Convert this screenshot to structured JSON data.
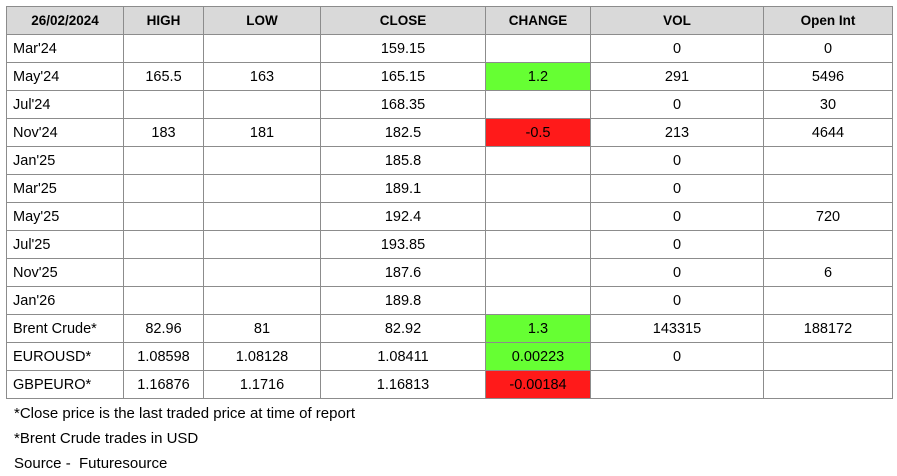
{
  "table": {
    "headers": [
      "26/02/2024",
      "HIGH",
      "LOW",
      "CLOSE",
      "CHANGE",
      "VOL",
      "Open Int"
    ],
    "rows": [
      {
        "label": "Mar'24",
        "high": "",
        "low": "",
        "close": "159.15",
        "change": "",
        "change_dir": "",
        "vol": "0",
        "oi": "0"
      },
      {
        "label": "May'24",
        "high": "165.5",
        "low": "163",
        "close": "165.15",
        "change": "1.2",
        "change_dir": "pos",
        "vol": "291",
        "oi": "5496"
      },
      {
        "label": "Jul'24",
        "high": "",
        "low": "",
        "close": "168.35",
        "change": "",
        "change_dir": "",
        "vol": "0",
        "oi": "30"
      },
      {
        "label": "Nov'24",
        "high": "183",
        "low": "181",
        "close": "182.5",
        "change": "-0.5",
        "change_dir": "neg",
        "vol": "213",
        "oi": "4644"
      },
      {
        "label": "Jan'25",
        "high": "",
        "low": "",
        "close": "185.8",
        "change": "",
        "change_dir": "",
        "vol": "0",
        "oi": ""
      },
      {
        "label": "Mar'25",
        "high": "",
        "low": "",
        "close": "189.1",
        "change": "",
        "change_dir": "",
        "vol": "0",
        "oi": ""
      },
      {
        "label": "May'25",
        "high": "",
        "low": "",
        "close": "192.4",
        "change": "",
        "change_dir": "",
        "vol": "0",
        "oi": "720"
      },
      {
        "label": "Jul'25",
        "high": "",
        "low": "",
        "close": "193.85",
        "change": "",
        "change_dir": "",
        "vol": "0",
        "oi": ""
      },
      {
        "label": "Nov'25",
        "high": "",
        "low": "",
        "close": "187.6",
        "change": "",
        "change_dir": "",
        "vol": "0",
        "oi": "6"
      },
      {
        "label": "Jan'26",
        "high": "",
        "low": "",
        "close": "189.8",
        "change": "",
        "change_dir": "",
        "vol": "0",
        "oi": ""
      },
      {
        "label": "Brent Crude*",
        "high": "82.96",
        "low": "81",
        "close": "82.92",
        "change": "1.3",
        "change_dir": "pos",
        "vol": "143315",
        "oi": "188172"
      },
      {
        "label": "EUROUSD*",
        "high": "1.08598",
        "low": "1.08128",
        "close": "1.08411",
        "change": "0.00223",
        "change_dir": "pos",
        "vol": "0",
        "oi": ""
      },
      {
        "label": "GBPEURO*",
        "high": "1.16876",
        "low": "1.1716",
        "close": "1.16813",
        "change": "-0.00184",
        "change_dir": "neg",
        "vol": "",
        "oi": ""
      }
    ]
  },
  "colors": {
    "positive": "#66ff33",
    "negative": "#ff1a1a",
    "header_bg": "#d9d9d9"
  },
  "notes": [
    "*Close price is the last traded price at time of report",
    "*Brent Crude trades in USD",
    "Source -  Futuresource"
  ]
}
